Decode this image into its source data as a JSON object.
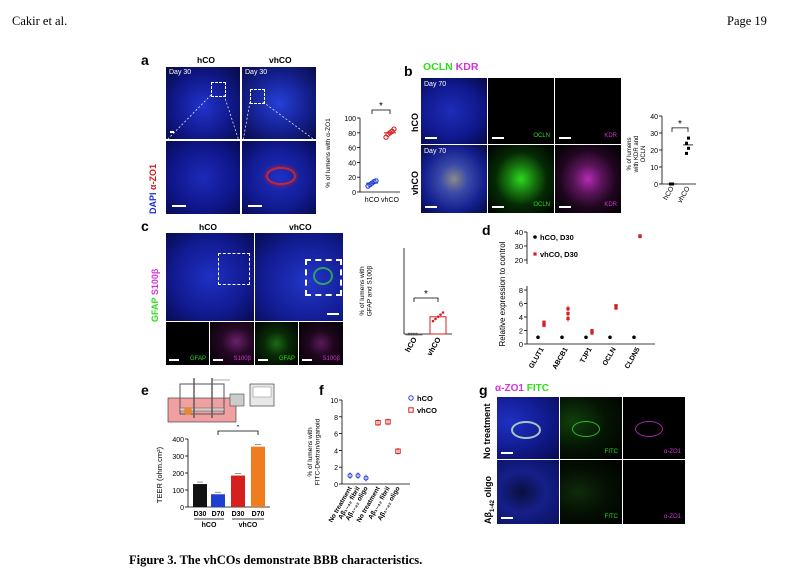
{
  "header": {
    "author": "Cakir et al.",
    "page": "Page 19"
  },
  "caption": "Figure 3. The vhCOs demonstrate BBB characteristics.",
  "panel_a": {
    "letter": "a",
    "col_hco": "hCO",
    "col_vhco": "vhCO",
    "day_hco": "Day 30",
    "day_vhco": "Day 30",
    "stain_dapi": "DAPI",
    "stain_marker": "α-ZO1",
    "colors": {
      "dapi": "#1a2dd6",
      "zo1": "#d81a1a"
    }
  },
  "panel_b": {
    "letter": "b",
    "stain_green": "OCLN",
    "stain_magenta": "KDR",
    "row_hco": "hCO",
    "row_vhco": "vhCO",
    "day_hco": "Day 70",
    "day_vhco": "Day 70",
    "ch_ocln": "OCLN",
    "ch_kdr": "KDR",
    "ch_ocln2": "OCLN",
    "ch_kdr2": "KDR",
    "colors": {
      "ocln": "#2de01a",
      "kdr": "#d633d6"
    }
  },
  "panel_c": {
    "letter": "c",
    "col_hco": "hCO",
    "col_vhco": "vhCO",
    "stain_green": "GFAP",
    "stain_magenta": "S100β",
    "ch1": "GFAP",
    "ch2": "S100β",
    "ch3": "GFAP",
    "ch4": "S100β"
  },
  "panel_d": {
    "letter": "d"
  },
  "panel_e": {
    "letter": "e"
  },
  "panel_f": {
    "letter": "f"
  },
  "panel_g": {
    "letter": "g",
    "stain_magenta": "α-ZO1",
    "stain_green": "FITC",
    "row1": "No treatment",
    "row2a": "Aβ",
    "row2sub": "1-42",
    "row2b": " oligo",
    "row2c": "treatment",
    "ch_fitc": "FITC",
    "ch_zo1": "α-ZO1",
    "ch_fitc2": "FITC",
    "ch_zo12": "α-ZO1"
  },
  "chart_data": [
    {
      "id": "a",
      "type": "scatter",
      "ylabel": "% of lumens with α-ZO1",
      "categories": [
        "hCO",
        "vhCO"
      ],
      "ylim": [
        0,
        100
      ],
      "yticks": [
        0,
        20,
        40,
        60,
        80,
        100
      ],
      "series": [
        {
          "name": "hCO",
          "values": [
            8,
            10,
            12,
            14,
            15
          ],
          "mean": 12,
          "color": "#1f3fd1"
        },
        {
          "name": "vhCO",
          "values": [
            74,
            78,
            80,
            82,
            85
          ],
          "mean": 80,
          "color": "#d62020"
        }
      ],
      "significance": "*"
    },
    {
      "id": "b",
      "type": "scatter",
      "ylabel": "% of lumens with KDR and OCLN",
      "categories": [
        "hCO",
        "vhCO"
      ],
      "ylim": [
        0,
        40
      ],
      "yticks": [
        0,
        10,
        20,
        30,
        40
      ],
      "series": [
        {
          "name": "hCO",
          "values": [
            0,
            0,
            0,
            0
          ],
          "mean": 0,
          "color": "#000000"
        },
        {
          "name": "vhCO",
          "values": [
            18,
            21,
            24,
            27
          ],
          "mean": 23,
          "color": "#000000"
        }
      ],
      "significance": "*"
    },
    {
      "id": "c",
      "type": "bar",
      "ylabel": "% of lumens with GFAP and S100β",
      "categories": [
        "hCO",
        "vhCO"
      ],
      "ylim": [
        0,
        40
      ],
      "values": [
        0,
        8
      ],
      "points": [
        [
          0,
          0,
          0,
          0
        ],
        [
          6,
          7,
          8,
          9,
          10
        ]
      ],
      "colors": [
        "#555555",
        "#d62020"
      ],
      "significance": "*"
    },
    {
      "id": "d",
      "type": "scatter",
      "ylabel": "Relative expression to control",
      "categories": [
        "GLUT1",
        "ABCB1",
        "TJP1",
        "OCLN",
        "CLDN5"
      ],
      "yticks": [
        0,
        2,
        4,
        6,
        8,
        20,
        30,
        40
      ],
      "broken_axis": [
        8,
        20
      ],
      "series": [
        {
          "name": "hCO, D30",
          "values": [
            1,
            1,
            1,
            1,
            1
          ],
          "color": "#000000"
        },
        {
          "name": "vhCO, D30",
          "values": [
            3.0,
            4.5,
            1.8,
            5.5,
            37
          ],
          "spread": [
            0.4,
            1.2,
            0.3,
            0.3,
            0.4
          ],
          "color": "#d62020"
        }
      ],
      "legend": "top-left"
    },
    {
      "id": "e",
      "type": "bar",
      "ylabel": "TEER (ohm.cm²)",
      "categories": [
        "D30",
        "D70",
        "D30",
        "D70"
      ],
      "groups": [
        "hCO",
        "vhCO"
      ],
      "values": [
        135,
        75,
        185,
        355
      ],
      "colors": [
        "#111111",
        "#1f3fd1",
        "#d62020",
        "#ef7c1f"
      ],
      "ylim": [
        0,
        400
      ],
      "yticks": [
        0,
        100,
        200,
        300,
        400
      ],
      "significance": "*"
    },
    {
      "id": "f",
      "type": "scatter",
      "ylabel": "% of lumens with FITC-Dextran/organoid",
      "categories": [
        "No treatment",
        "Aβ₁₋₄₂ fibril",
        "Aβ₁₋₄₂ oligo",
        "No treatment",
        "Aβ₁₋₄₂ fibril",
        "Aβ₁₋₄₂ oligo"
      ],
      "ylim": [
        0,
        10
      ],
      "yticks": [
        0,
        2,
        4,
        6,
        8,
        10
      ],
      "series": [
        {
          "name": "hCO",
          "values": [
            1,
            1,
            0.7
          ],
          "color": "#1f3fd1",
          "marker": "circle"
        },
        {
          "name": "vhCO",
          "values": [
            7.3,
            7.4,
            3.9
          ],
          "color": "#d62020",
          "marker": "square"
        }
      ],
      "legend": "top-right"
    }
  ]
}
